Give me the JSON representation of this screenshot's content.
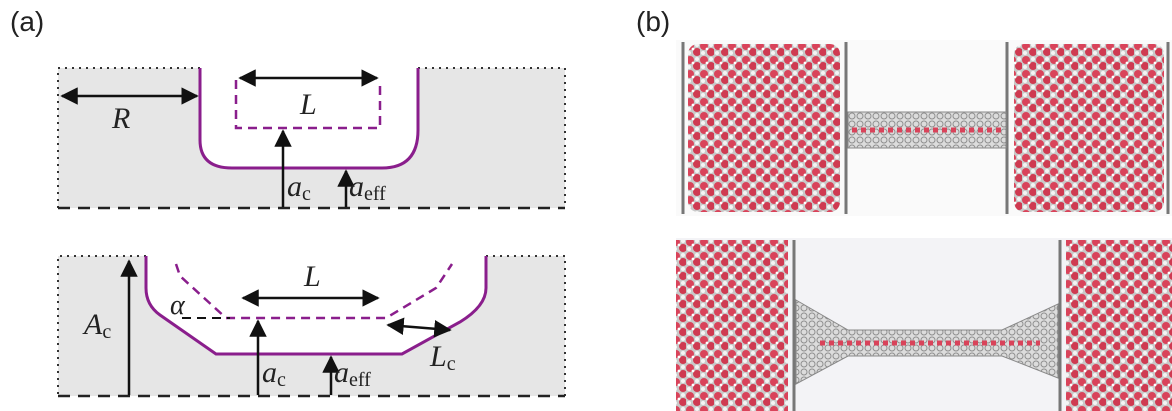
{
  "panels": {
    "a": {
      "label": "(a)"
    },
    "b": {
      "label": "(b)"
    }
  },
  "diagram_top": {
    "R": "R",
    "L": "L",
    "a_c": {
      "sym": "a",
      "sub": "c"
    },
    "a_eff": {
      "sym": "a",
      "sub": "eff"
    }
  },
  "diagram_bottom": {
    "A_c": {
      "sym": "A",
      "sub": "c"
    },
    "L": "L",
    "alpha": "α",
    "a_c": {
      "sym": "a",
      "sub": "c"
    },
    "a_eff": {
      "sym": "a",
      "sub": "eff"
    },
    "L_c": {
      "sym": "L",
      "sub": "c"
    }
  },
  "colors": {
    "wall": "#8a1e8c",
    "fill": "#e6e6e6",
    "water_red": "#d9435a",
    "water_white": "#f2f2f2",
    "tube": "#9a9a9a"
  }
}
